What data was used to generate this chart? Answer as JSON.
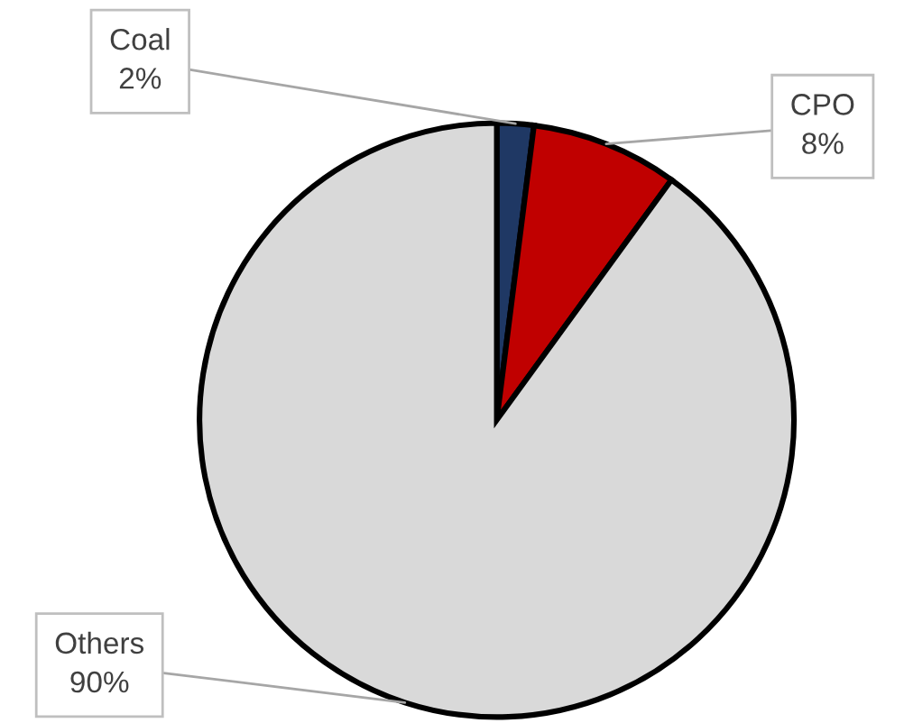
{
  "chart_data": {
    "type": "pie",
    "categories": [
      "Coal",
      "CPO",
      "Others"
    ],
    "values": [
      2,
      8,
      90
    ],
    "value_labels": [
      "2%",
      "8%",
      "90%"
    ],
    "colors": [
      "#1f3864",
      "#c00000",
      "#d9d9d9"
    ],
    "legend": false
  }
}
